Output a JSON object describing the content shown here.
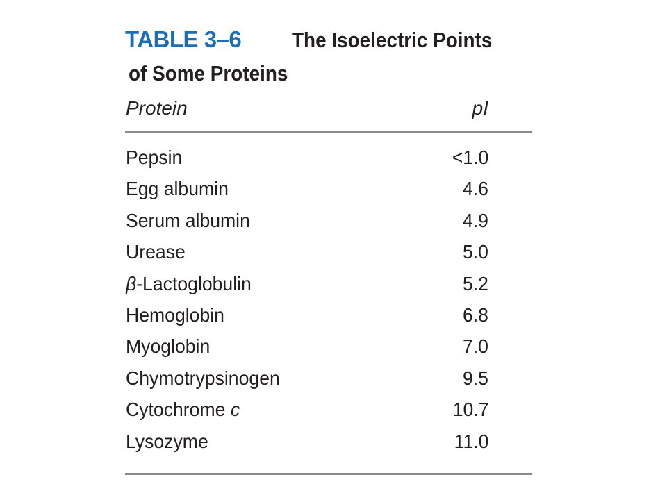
{
  "header": {
    "label": "TABLE 3–6",
    "title": [
      "The Isoelectric Points",
      "of Some Proteins"
    ]
  },
  "table": {
    "columns": [
      "Protein",
      "pI"
    ],
    "rows": [
      {
        "protein": "Pepsin",
        "pI": "<1.0"
      },
      {
        "protein": "Egg albumin",
        "pI": "4.6"
      },
      {
        "protein": "Serum albumin",
        "pI": "4.9"
      },
      {
        "protein": "Urease",
        "pI": "5.0"
      },
      {
        "protein": [
          "β",
          "-Lactoglobulin"
        ],
        "pI": "5.2"
      },
      {
        "protein": "Hemoglobin",
        "pI": "6.8"
      },
      {
        "protein": "Myoglobin",
        "pI": "7.0"
      },
      {
        "protein": "Chymotrypsinogen",
        "pI": "9.5"
      },
      {
        "protein": [
          "Cytochrome",
          "c"
        ],
        "pI": "10.7"
      },
      {
        "protein": "Lysozyme",
        "pI": "11.0"
      }
    ]
  }
}
